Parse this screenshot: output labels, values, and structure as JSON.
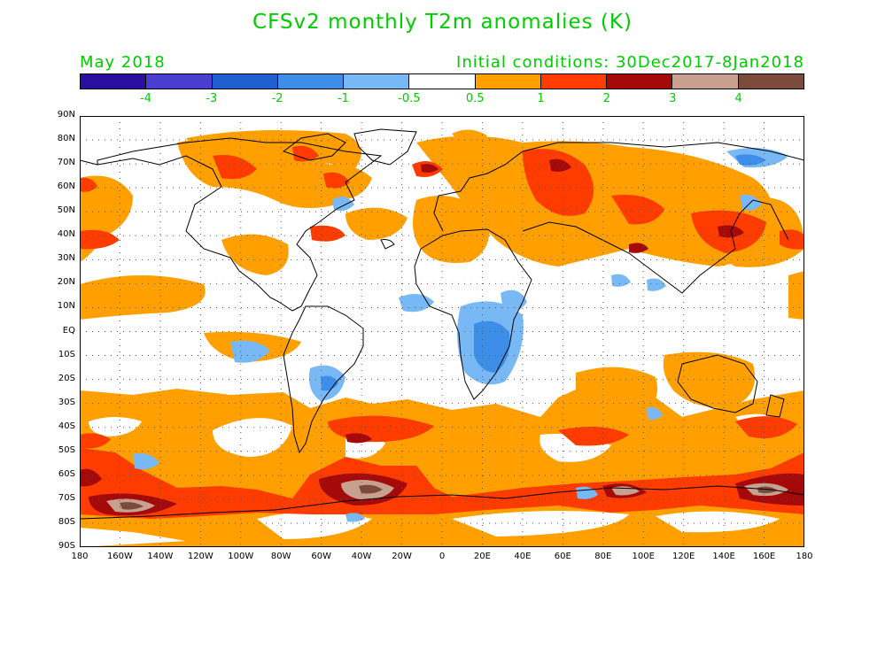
{
  "title": "CFSv2 monthly T2m anomalies (K)",
  "forecast_month": "May 2018",
  "initial_conditions": "Initial conditions: 30Dec2017-8Jan2018",
  "colorbar": {
    "colors": [
      "#2a0ea0",
      "#4a3ed0",
      "#1f5fd0",
      "#3c8ee8",
      "#78b8f4",
      "#ffffff",
      "#ffa000",
      "#ff3c00",
      "#a50a0a",
      "#c8a090",
      "#7a4a3a"
    ],
    "labels": [
      "-4",
      "-3",
      "-2",
      "-1",
      "-0.5",
      "0.5",
      "1",
      "2",
      "3",
      "4"
    ]
  },
  "axes": {
    "lat_labels": [
      "90N",
      "80N",
      "70N",
      "60N",
      "50N",
      "40N",
      "30N",
      "20N",
      "10N",
      "EQ",
      "10S",
      "20S",
      "30S",
      "40S",
      "50S",
      "60S",
      "70S",
      "80S",
      "90S"
    ],
    "lon_labels": [
      "180",
      "160W",
      "140W",
      "120W",
      "100W",
      "80W",
      "60W",
      "40W",
      "20W",
      "0",
      "20E",
      "40E",
      "60E",
      "80E",
      "100E",
      "120E",
      "140E",
      "160E",
      "180"
    ]
  },
  "legend_colors": {
    "warm1": "#ffa000",
    "warm2": "#ff3c00",
    "warm3": "#a50a0a",
    "warm4": "#c8a090",
    "warm5": "#7a4a3a",
    "cool1": "#78b8f4",
    "cool2": "#3c8ee8",
    "cool3": "#1f5fd0"
  }
}
